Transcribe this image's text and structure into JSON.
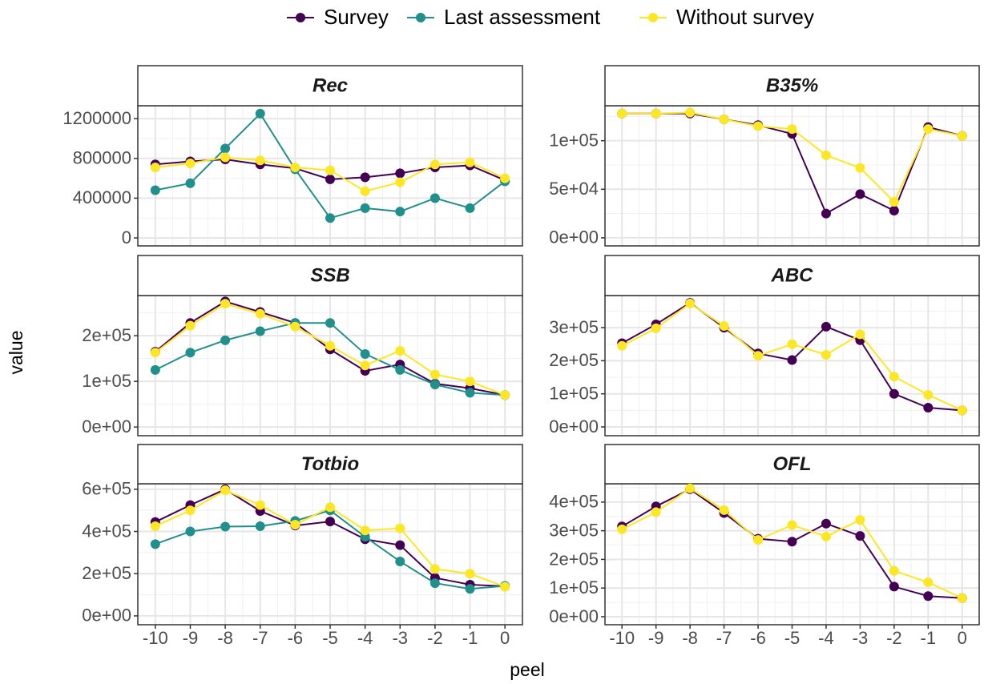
{
  "figure": {
    "xlabel": "peel",
    "ylabel": "value"
  },
  "chart_data": [
    {
      "type": "line",
      "title": "Rec",
      "x": [
        -10,
        -9,
        -8,
        -7,
        -6,
        -5,
        -4,
        -3,
        -2,
        -1,
        0
      ],
      "xlim": [
        -10.5,
        0.5
      ],
      "xticks": [
        -10,
        -9,
        -8,
        -7,
        -6,
        -5,
        -4,
        -3,
        -2,
        -1,
        0
      ],
      "ylim": [
        -80000,
        1330000
      ],
      "yticks": [
        0,
        400000,
        800000,
        1200000
      ],
      "grid": true,
      "series": [
        {
          "name": "Survey",
          "color": "#440154",
          "values": [
            740000,
            770000,
            790000,
            740000,
            700000,
            590000,
            610000,
            650000,
            710000,
            730000,
            580000
          ]
        },
        {
          "name": "Last assessment",
          "color": "#21908C",
          "values": [
            480000,
            550000,
            900000,
            1250000,
            690000,
            200000,
            300000,
            265000,
            400000,
            300000,
            570000
          ]
        },
        {
          "name": "Without survey",
          "color": "#FDE725",
          "values": [
            710000,
            750000,
            810000,
            780000,
            710000,
            680000,
            470000,
            560000,
            740000,
            760000,
            600000
          ]
        }
      ]
    },
    {
      "type": "line",
      "title": "B35%",
      "x": [
        -10,
        -9,
        -8,
        -7,
        -6,
        -5,
        -4,
        -3,
        -2,
        -1,
        0
      ],
      "xlim": [
        -10.5,
        0.5
      ],
      "xticks": [
        -10,
        -9,
        -8,
        -7,
        -6,
        -5,
        -4,
        -3,
        -2,
        -1,
        0
      ],
      "ylim": [
        -8300,
        136000
      ],
      "yticks": [
        {
          "value": 0,
          "label": "0e+00"
        },
        {
          "value": 50000,
          "label": "5e+04"
        },
        {
          "value": 100000,
          "label": "1e+05"
        }
      ],
      "grid": true,
      "series": [
        {
          "name": "Survey",
          "color": "#440154",
          "values": [
            128000,
            128000,
            128000,
            122000,
            116000,
            107000,
            25000,
            45000,
            28000,
            114000,
            105000
          ]
        },
        {
          "name": "Without survey",
          "color": "#FDE725",
          "values": [
            128000,
            128000,
            129000,
            122000,
            115000,
            112000,
            85000,
            72000,
            37000,
            112000,
            105000
          ]
        }
      ]
    },
    {
      "type": "line",
      "title": "SSB",
      "x": [
        -10,
        -9,
        -8,
        -7,
        -6,
        -5,
        -4,
        -3,
        -2,
        -1,
        0
      ],
      "xlim": [
        -10.5,
        0.5
      ],
      "xticks": [
        -10,
        -9,
        -8,
        -7,
        -6,
        -5,
        -4,
        -3,
        -2,
        -1,
        0
      ],
      "ylim": [
        -19000,
        288000
      ],
      "yticks": [
        {
          "value": 0,
          "label": "0e+00"
        },
        {
          "value": 100000,
          "label": "1e+05"
        },
        {
          "value": 200000,
          "label": "2e+05"
        }
      ],
      "grid": true,
      "series": [
        {
          "name": "Survey",
          "color": "#440154",
          "values": [
            165000,
            228000,
            275000,
            252000,
            228000,
            170000,
            123000,
            137000,
            95000,
            85000,
            70000
          ]
        },
        {
          "name": "Last assessment",
          "color": "#21908C",
          "values": [
            125000,
            163000,
            190000,
            210000,
            228000,
            228000,
            160000,
            125000,
            93000,
            75000,
            70000
          ]
        },
        {
          "name": "Without survey",
          "color": "#FDE725",
          "values": [
            163000,
            222000,
            270000,
            248000,
            220000,
            178000,
            135000,
            167000,
            115000,
            100000,
            70000
          ]
        }
      ]
    },
    {
      "type": "line",
      "title": "ABC",
      "x": [
        -10,
        -9,
        -8,
        -7,
        -6,
        -5,
        -4,
        -3,
        -2,
        -1,
        0
      ],
      "xlim": [
        -10.5,
        0.5
      ],
      "xticks": [
        -10,
        -9,
        -8,
        -7,
        -6,
        -5,
        -4,
        -3,
        -2,
        -1,
        0
      ],
      "ylim": [
        -26600,
        397000
      ],
      "yticks": [
        {
          "value": 0,
          "label": "0e+00"
        },
        {
          "value": 100000,
          "label": "1e+05"
        },
        {
          "value": 200000,
          "label": "2e+05"
        },
        {
          "value": 300000,
          "label": "3e+05"
        }
      ],
      "grid": true,
      "series": [
        {
          "name": "Survey",
          "color": "#440154",
          "values": [
            253000,
            310000,
            375000,
            300000,
            222000,
            202000,
            303000,
            262000,
            100000,
            58000,
            50000
          ]
        },
        {
          "name": "Without survey",
          "color": "#FDE725",
          "values": [
            245000,
            298000,
            373000,
            305000,
            215000,
            250000,
            218000,
            280000,
            152000,
            97000,
            50000
          ]
        }
      ]
    },
    {
      "type": "line",
      "title": "Totbio",
      "x": [
        -10,
        -9,
        -8,
        -7,
        -6,
        -5,
        -4,
        -3,
        -2,
        -1,
        0
      ],
      "xlim": [
        -10.5,
        0.5
      ],
      "xticks": [
        -10,
        -9,
        -8,
        -7,
        -6,
        -5,
        -4,
        -3,
        -2,
        -1,
        0
      ],
      "ylim": [
        -42000,
        626000
      ],
      "yticks": [
        {
          "value": 0,
          "label": "0e+00"
        },
        {
          "value": 200000,
          "label": "2e+05"
        },
        {
          "value": 400000,
          "label": "4e+05"
        },
        {
          "value": 600000,
          "label": "6e+05"
        }
      ],
      "grid": true,
      "series": [
        {
          "name": "Survey",
          "color": "#440154",
          "values": [
            445000,
            525000,
            600000,
            497000,
            428000,
            447000,
            363000,
            335000,
            180000,
            148000,
            140000
          ]
        },
        {
          "name": "Last assessment",
          "color": "#21908C",
          "values": [
            340000,
            400000,
            423000,
            425000,
            450000,
            500000,
            375000,
            258000,
            155000,
            128000,
            142000
          ]
        },
        {
          "name": "Without survey",
          "color": "#FDE725",
          "values": [
            425000,
            500000,
            595000,
            525000,
            432000,
            515000,
            405000,
            415000,
            222000,
            200000,
            138000
          ]
        }
      ]
    },
    {
      "type": "line",
      "title": "OFL",
      "x": [
        -10,
        -9,
        -8,
        -7,
        -6,
        -5,
        -4,
        -3,
        -2,
        -1,
        0
      ],
      "xlim": [
        -10.5,
        0.5
      ],
      "xticks": [
        -10,
        -9,
        -8,
        -7,
        -6,
        -5,
        -4,
        -3,
        -2,
        -1,
        0
      ],
      "ylim": [
        -28000,
        464000
      ],
      "yticks": [
        {
          "value": 0,
          "label": "0e+00"
        },
        {
          "value": 100000,
          "label": "1e+05"
        },
        {
          "value": 200000,
          "label": "2e+05"
        },
        {
          "value": 300000,
          "label": "3e+05"
        },
        {
          "value": 400000,
          "label": "4e+05"
        }
      ],
      "grid": true,
      "series": [
        {
          "name": "Survey",
          "color": "#440154",
          "values": [
            315000,
            385000,
            445000,
            362000,
            272000,
            262000,
            325000,
            282000,
            105000,
            72000,
            65000
          ]
        },
        {
          "name": "Without survey",
          "color": "#FDE725",
          "values": [
            305000,
            365000,
            448000,
            372000,
            268000,
            320000,
            280000,
            338000,
            160000,
            120000,
            65000
          ]
        }
      ]
    }
  ]
}
